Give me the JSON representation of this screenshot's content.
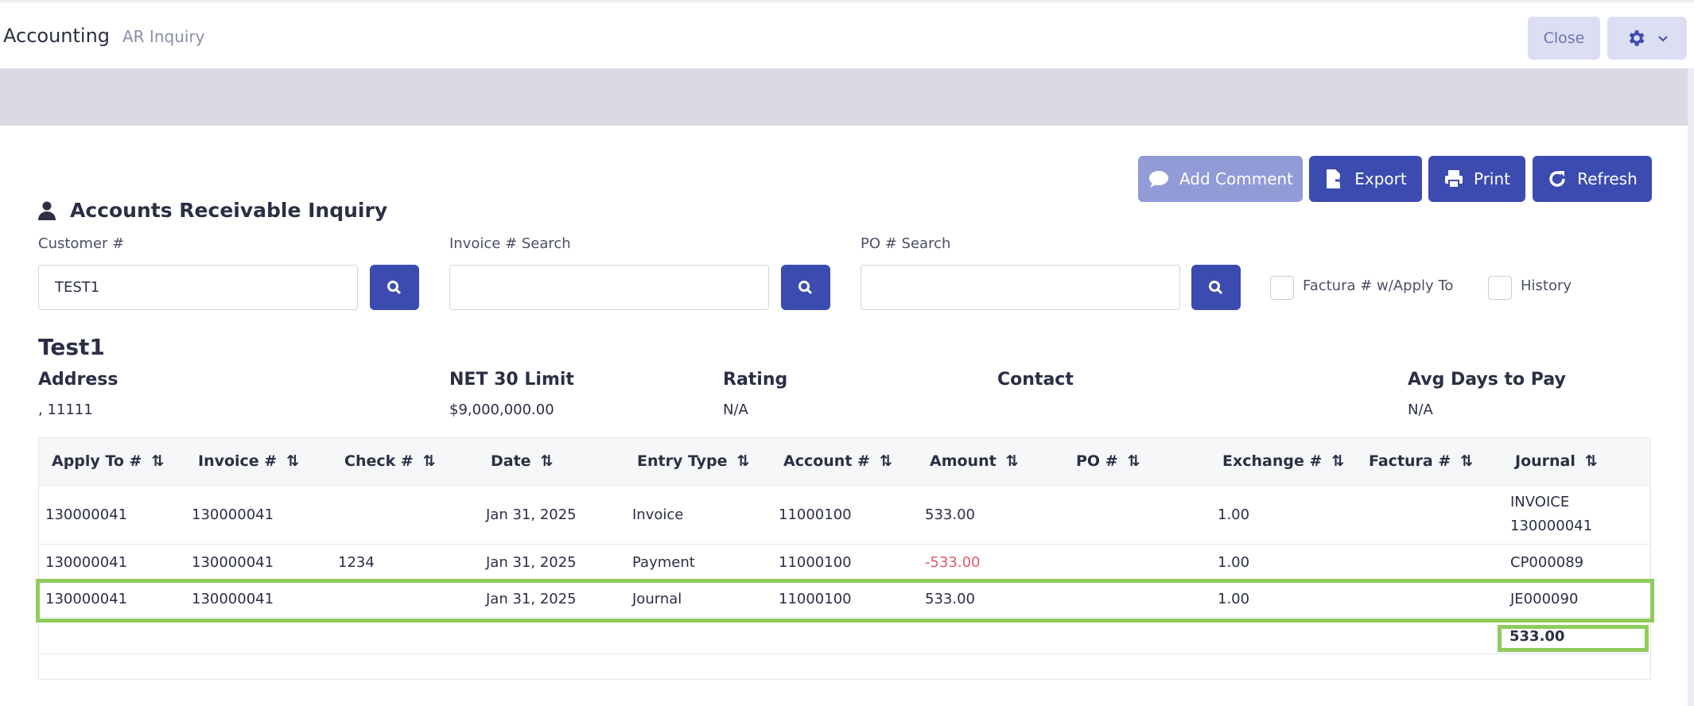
{
  "header": {
    "app": "Accounting",
    "page": "AR Inquiry",
    "close_label": "Close",
    "gear_icon": "gear-icon"
  },
  "toolbar": {
    "add_comment": "Add Comment",
    "export": "Export",
    "print": "Print",
    "refresh": "Refresh"
  },
  "section": {
    "title": "Accounts Receivable Inquiry",
    "icon": "user-icon"
  },
  "search": {
    "customer_label": "Customer #",
    "customer_value": "TEST1",
    "invoice_label": "Invoice # Search",
    "invoice_value": "",
    "po_label": "PO # Search",
    "po_value": "",
    "factura_label": "Factura # w/Apply To",
    "history_label": "History"
  },
  "customer": {
    "name": "Test1",
    "address_label": "Address",
    "address_value": ", 11111",
    "limit_label": "NET 30 Limit",
    "limit_value": "$9,000,000.00",
    "rating_label": "Rating",
    "rating_value": "N/A",
    "contact_label": "Contact",
    "contact_value": "",
    "avg_label": "Avg Days to Pay",
    "avg_value": "N/A"
  },
  "table": {
    "columns": [
      "Apply To #",
      "Invoice #",
      "Check #",
      "Date",
      "Entry Type",
      "Account #",
      "Amount",
      "PO #",
      "Exchange #",
      "Factura #",
      "Journal"
    ],
    "rows": [
      {
        "apply_to": "130000041",
        "invoice": "130000041",
        "check": "",
        "date": "Jan 31, 2025",
        "entry_type": "Invoice",
        "account": "11000100",
        "amount": "533.00",
        "po": "",
        "exchange": "1.00",
        "factura": "",
        "journal_line1": "INVOICE",
        "journal_line2": "130000041"
      },
      {
        "apply_to": "130000041",
        "invoice": "130000041",
        "check": "1234",
        "date": "Jan 31, 2025",
        "entry_type": "Payment",
        "account": "11000100",
        "amount": "-533.00",
        "po": "",
        "exchange": "1.00",
        "factura": "",
        "journal": "CP000089"
      },
      {
        "apply_to": "130000041",
        "invoice": "130000041",
        "check": "",
        "date": "Jan 31, 2025",
        "entry_type": "Journal",
        "account": "11000100",
        "amount": "533.00",
        "po": "",
        "exchange": "1.00",
        "factura": "",
        "journal": "JE000090"
      }
    ],
    "total": "533.00"
  }
}
